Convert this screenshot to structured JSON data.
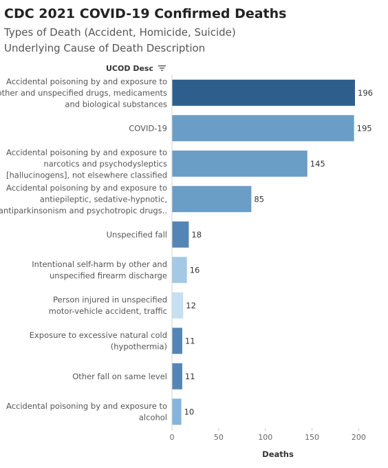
{
  "title": "CDC 2021 COVID-19 Confirmed Deaths",
  "subtitle_line1": "Types of Death (Accident, Homicide, Suicide)",
  "subtitle_line2": "Underlying Cause of Death Description",
  "column_header": "UCOD Desc",
  "sort_icon": "sort-descending-icon",
  "chart_data": {
    "type": "bar",
    "orientation": "horizontal",
    "xlabel": "Deaths",
    "xlim": [
      0,
      230
    ],
    "x_ticks": [
      0,
      50,
      100,
      150,
      200
    ],
    "grid": false,
    "categories": [
      [
        "Accidental poisoning by and exposure to",
        "other and unspecified drugs, medicaments",
        "and biological substances"
      ],
      [
        "COVID-19"
      ],
      [
        "Accidental poisoning by and exposure to",
        "narcotics and psychodysleptics",
        "[hallucinogens], not elsewhere classified"
      ],
      [
        "Accidental poisoning by and exposure to",
        "antiepileptic, sedative-hypnotic,",
        "antiparkinsonism and psychotropic drugs.."
      ],
      [
        "Unspecified fall"
      ],
      [
        "Intentional self-harm by other and",
        "unspecified firearm discharge"
      ],
      [
        "Person injured in unspecified",
        "motor-vehicle accident, traffic"
      ],
      [
        "Exposure to excessive natural cold",
        "(hypothermia)"
      ],
      [
        "Other fall on same level"
      ],
      [
        "Accidental poisoning by and exposure to",
        "alcohol"
      ]
    ],
    "values": [
      196,
      195,
      145,
      85,
      18,
      16,
      12,
      11,
      11,
      10
    ],
    "colors": [
      "#2e5f8c",
      "#6a9ec7",
      "#6a9ec7",
      "#6a9ec7",
      "#5585b5",
      "#a4c9e6",
      "#c6e0f2",
      "#5585b5",
      "#5585b5",
      "#86b4da"
    ]
  }
}
